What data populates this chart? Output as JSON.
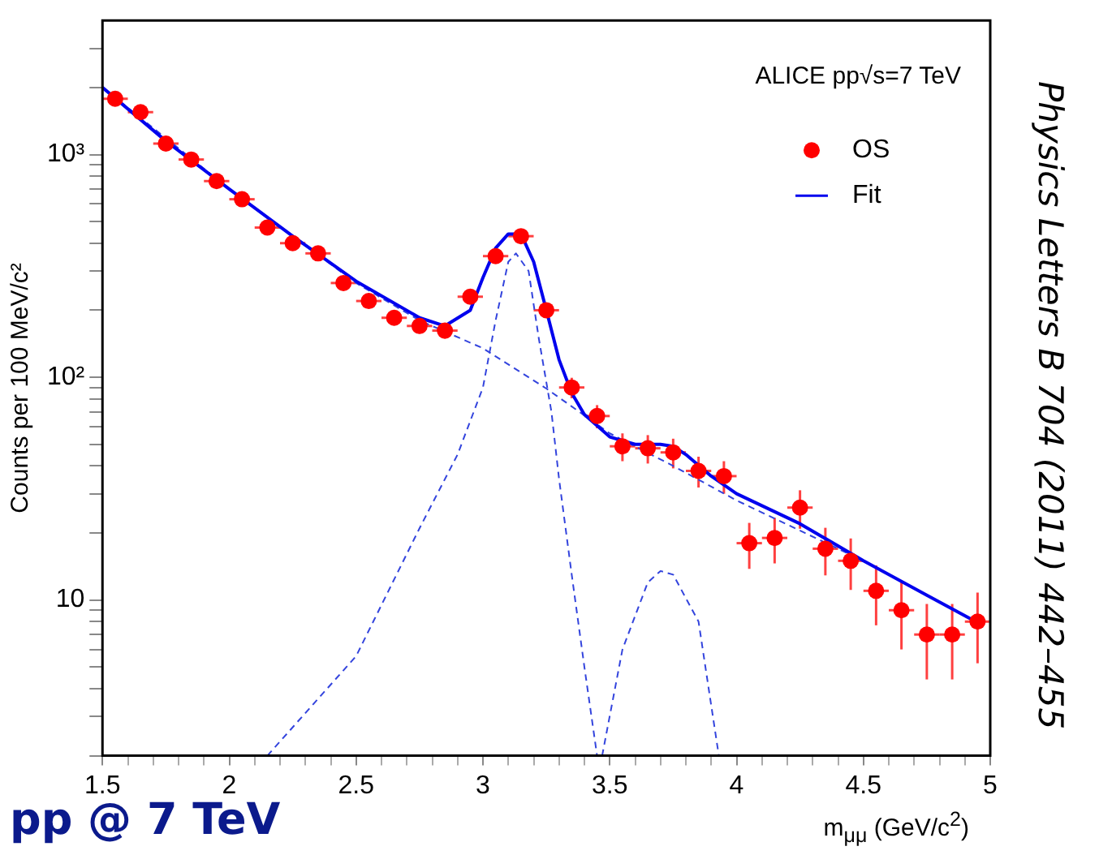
{
  "chart_data": {
    "type": "scatter",
    "xlabel": "m$_{μμ}$ (GeV/c$^{2}$)",
    "ylabel": "Counts per 100 MeV/c²",
    "log": "y",
    "legend": "top right",
    "grid": false,
    "xlim": [
      1.5,
      5
    ],
    "ylim": [
      2,
      4000
    ],
    "xticks": [
      1.5,
      {
        "value": 1.6,
        "label": null
      },
      {
        "value": 1.7,
        "label": null
      },
      {
        "value": 1.8,
        "label": null
      },
      {
        "value": 1.9,
        "label": null
      },
      2,
      {
        "value": 2.1,
        "label": null
      },
      {
        "value": 2.2,
        "label": null
      },
      {
        "value": 2.3,
        "label": null
      },
      {
        "value": 2.4,
        "label": null
      },
      2.5,
      {
        "value": 2.6,
        "label": null
      },
      {
        "value": 2.7,
        "label": null
      },
      {
        "value": 2.8,
        "label": null
      },
      {
        "value": 2.9,
        "label": null
      },
      3,
      {
        "value": 3.1,
        "label": null
      },
      {
        "value": 3.2,
        "label": null
      },
      {
        "value": 3.3,
        "label": null
      },
      {
        "value": 3.4,
        "label": null
      },
      3.5,
      {
        "value": 3.6,
        "label": null
      },
      {
        "value": 3.7,
        "label": null
      },
      {
        "value": 3.8,
        "label": null
      },
      {
        "value": 3.9,
        "label": null
      },
      4,
      {
        "value": 4.1,
        "label": null
      },
      {
        "value": 4.2,
        "label": null
      },
      {
        "value": 4.3,
        "label": null
      },
      {
        "value": 4.4,
        "label": null
      },
      4.5,
      {
        "value": 4.6,
        "label": null
      },
      {
        "value": 4.7,
        "label": null
      },
      {
        "value": 4.8,
        "label": null
      },
      {
        "value": 4.9,
        "label": null
      },
      5
    ],
    "yticks": [
      {
        "value": 2,
        "label": null
      },
      {
        "value": 3,
        "label": null
      },
      {
        "value": 4,
        "label": null
      },
      {
        "value": 5,
        "label": null
      },
      {
        "value": 6,
        "label": null
      },
      {
        "value": 7,
        "label": null
      },
      {
        "value": 8,
        "label": null
      },
      {
        "value": 9,
        "label": null
      },
      10,
      {
        "value": 20,
        "label": null
      },
      {
        "value": 30,
        "label": null
      },
      {
        "value": 40,
        "label": null
      },
      {
        "value": 50,
        "label": null
      },
      {
        "value": 60,
        "label": null
      },
      {
        "value": 70,
        "label": null
      },
      {
        "value": 80,
        "label": null
      },
      {
        "value": 90,
        "label": null
      },
      {
        "value": 100,
        "label": "10²"
      },
      {
        "value": 200,
        "label": null
      },
      {
        "value": 300,
        "label": null
      },
      {
        "value": 400,
        "label": null
      },
      {
        "value": 500,
        "label": null
      },
      {
        "value": 600,
        "label": null
      },
      {
        "value": 700,
        "label": null
      },
      {
        "value": 800,
        "label": null
      },
      {
        "value": 900,
        "label": null
      },
      {
        "value": 1000,
        "label": "10³"
      },
      {
        "value": 2000,
        "label": null
      },
      {
        "value": 3000,
        "label": null
      }
    ],
    "annotations": [
      "ALICE pp√s=7 TeV",
      "Physics Letters B 704 (2011) 442–455",
      "pp @ 7 TeV"
    ],
    "series": [
      {
        "name": "OS",
        "marker": "circle",
        "color": "#ff0000",
        "x": [
          1.55,
          1.65,
          1.75,
          1.85,
          1.95,
          2.05,
          2.15,
          2.25,
          2.35,
          2.45,
          2.55,
          2.65,
          2.75,
          2.85,
          2.95,
          3.05,
          3.15,
          3.25,
          3.35,
          3.45,
          3.55,
          3.65,
          3.75,
          3.85,
          3.95,
          4.05,
          4.15,
          4.25,
          4.35,
          4.45,
          4.55,
          4.65,
          4.75,
          4.85,
          4.95
        ],
        "values": [
          1780,
          1550,
          1120,
          950,
          760,
          630,
          470,
          400,
          360,
          265,
          220,
          185,
          170,
          162,
          230,
          350,
          430,
          200,
          90,
          67,
          49,
          48,
          46,
          38,
          36,
          18,
          19,
          26,
          17,
          15,
          11,
          9,
          7,
          7,
          8
        ],
        "errors": [
          42,
          39,
          33,
          31,
          28,
          25,
          22,
          20,
          19,
          16,
          15,
          14,
          13,
          13,
          15,
          19,
          21,
          14,
          9.5,
          8,
          7,
          7,
          7,
          6,
          6,
          4.2,
          4.4,
          5.1,
          4.1,
          3.9,
          3.3,
          3,
          2.6,
          2.6,
          2.8
        ],
        "xerrors": [
          0.05,
          0.05,
          0.05,
          0.05,
          0.05,
          0.05,
          0.05,
          0.05,
          0.05,
          0.05,
          0.05,
          0.05,
          0.05,
          0.05,
          0.05,
          0.05,
          0.05,
          0.05,
          0.05,
          0.05,
          0.05,
          0.05,
          0.05,
          0.05,
          0.05,
          0.05,
          0.05,
          0.05,
          0.05,
          0.05,
          0.05,
          0.05,
          0.05,
          0.05,
          0.05
        ]
      },
      {
        "name": "Fit",
        "type": "line",
        "line_style": "solid",
        "color": "#0000ee",
        "x": [
          1.5,
          1.75,
          2.0,
          2.25,
          2.5,
          2.75,
          2.85,
          2.95,
          3.0,
          3.05,
          3.1,
          3.15,
          3.2,
          3.25,
          3.3,
          3.35,
          3.4,
          3.5,
          3.6,
          3.7,
          3.75,
          3.8,
          3.9,
          4.0,
          4.25,
          4.5,
          4.75,
          4.97
        ],
        "values": [
          2000,
          1150,
          700,
          430,
          270,
          185,
          170,
          200,
          280,
          380,
          440,
          440,
          330,
          200,
          120,
          85,
          68,
          54,
          50,
          50,
          49,
          45,
          36,
          30,
          22,
          15,
          10.5,
          7.7
        ]
      },
      {
        "type": "line",
        "line_style": "dashed",
        "color": "#3344dd",
        "x": [
          1.5,
          2.0,
          2.5,
          2.75,
          3.0,
          3.25,
          3.5,
          3.75,
          4.0,
          4.5,
          4.97
        ],
        "values": [
          2000,
          700,
          265,
          180,
          135,
          89,
          56,
          40,
          28,
          15,
          7.7
        ]
      },
      {
        "type": "line",
        "line_style": "dashed",
        "color": "#3344dd",
        "x": [
          2.15,
          2.5,
          2.75,
          2.9,
          3.0,
          3.05,
          3.1,
          3.13,
          3.18,
          3.22,
          3.27,
          3.3,
          3.35,
          3.4,
          3.45
        ],
        "values": [
          2,
          5.6,
          21,
          45,
          90,
          180,
          330,
          360,
          300,
          150,
          70,
          35,
          13,
          5,
          2
        ]
      },
      {
        "type": "line",
        "line_style": "dashed",
        "color": "#3344dd",
        "x": [
          3.47,
          3.55,
          3.65,
          3.7,
          3.75,
          3.85,
          3.93
        ],
        "values": [
          2,
          6,
          12,
          13.5,
          13,
          8,
          2
        ]
      }
    ]
  }
}
